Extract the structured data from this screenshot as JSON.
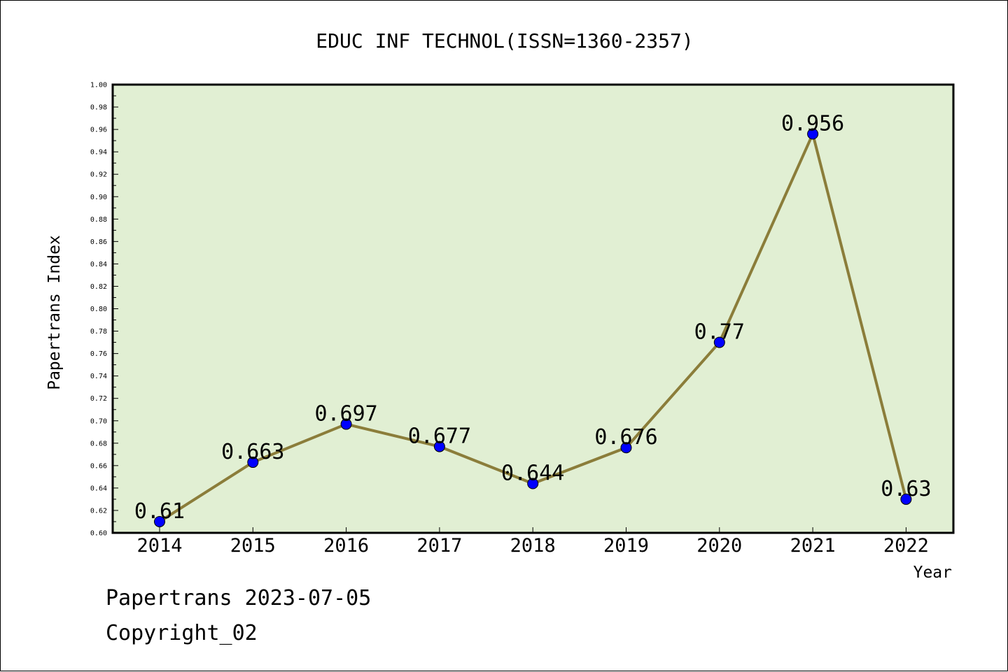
{
  "chart_data": {
    "type": "line",
    "title": "EDUC INF TECHNOL(ISSN=1360-2357)",
    "xlabel": "Year",
    "ylabel": "Papertrans Index",
    "categories": [
      "2014",
      "2015",
      "2016",
      "2017",
      "2018",
      "2019",
      "2020",
      "2021",
      "2022"
    ],
    "series": [
      {
        "values": [
          0.61,
          0.663,
          0.697,
          0.677,
          0.644,
          0.676,
          0.77,
          0.956,
          0.63
        ],
        "labels": [
          "0.61",
          "0.663",
          "0.697",
          "0.677",
          "0.644",
          "0.676",
          "0.77",
          "0.956",
          "0.63"
        ],
        "line_color": "#8b7d3a",
        "marker_color": "#0000ff"
      }
    ],
    "ylim": [
      0.6,
      1.0
    ],
    "yticks": [
      "0.60",
      "0.62",
      "0.64",
      "0.66",
      "0.68",
      "0.70",
      "0.72",
      "0.74",
      "0.76",
      "0.78",
      "0.80",
      "0.82",
      "0.84",
      "0.86",
      "0.88",
      "0.90",
      "0.92",
      "0.94",
      "0.96",
      "0.98",
      "1.00"
    ],
    "plot_background": "#e1efd3",
    "grid": false,
    "legend": "none"
  },
  "footer": {
    "source": "Papertrans 2023-07-05",
    "copyright": "Copyright_02"
  }
}
